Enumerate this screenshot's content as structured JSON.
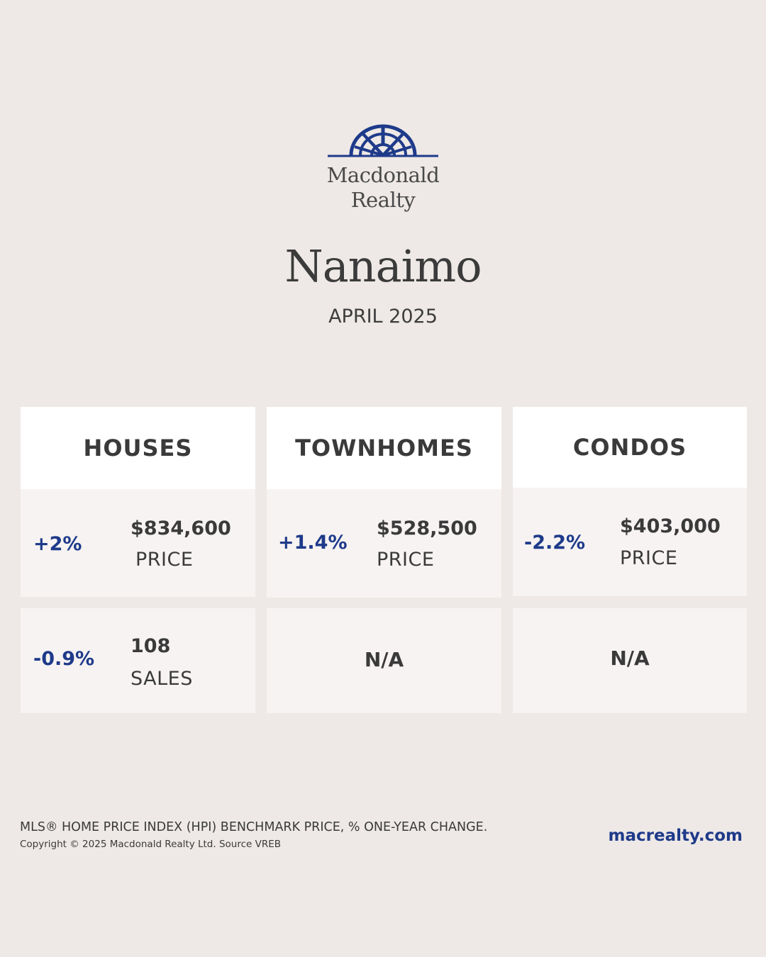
{
  "brand": {
    "logo_line1": "Macdonald",
    "logo_line2": "Realty",
    "logo_color": "#1e3a8a"
  },
  "title": "Nanaimo",
  "period": "APRIL 2025",
  "columns": [
    {
      "heading": "HOUSES",
      "price": {
        "change": "+2%",
        "value": "$834,600",
        "label": "PRICE"
      },
      "sales": {
        "change": "-0.9%",
        "value": "108",
        "label": "SALES"
      }
    },
    {
      "heading": "TOWNHOMES",
      "price": {
        "change": "+1.4%",
        "value": "$528,500",
        "label": "PRICE"
      },
      "sales": {
        "na": "N/A"
      }
    },
    {
      "heading": "CONDOS",
      "price": {
        "change": "-2.2%",
        "value": "$403,000",
        "label": "PRICE"
      },
      "sales": {
        "na": "N/A"
      }
    }
  ],
  "footer": {
    "note": "MLS® HOME PRICE INDEX (HPI) BENCHMARK PRICE, % ONE-YEAR CHANGE.",
    "copyright": "Copyright © 2025 Macdonald Realty Ltd. Source VREB",
    "website": "macrealty.com"
  },
  "colors": {
    "background": "#eee9e6",
    "accent": "#1e3a8a",
    "card_header": "#ffffff",
    "card_body": "#f7f3f2"
  }
}
